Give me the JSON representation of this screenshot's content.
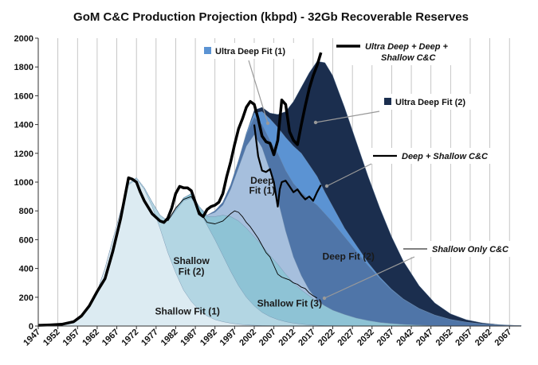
{
  "chart_data": {
    "type": "area",
    "title": "GoM C&C Production Projection (kbpd) - 32Gb Recoverable Reserves",
    "xlabel": "",
    "ylabel": "",
    "ylim": [
      0,
      2000
    ],
    "xlim": [
      1947,
      2070
    ],
    "yticks": [
      "0",
      "200",
      "400",
      "600",
      "800",
      "1000",
      "1200",
      "1400",
      "1600",
      "1800",
      "2000"
    ],
    "xticks": [
      "1947",
      "1952",
      "1957",
      "1962",
      "1967",
      "1972",
      "1977",
      "1982",
      "1987",
      "1992",
      "1997",
      "2002",
      "2007",
      "2012",
      "2017",
      "2022",
      "2027",
      "2032",
      "2037",
      "2042",
      "2047",
      "2052",
      "2057",
      "2062",
      "2067"
    ],
    "grid": "vertical",
    "x": [
      1947,
      1950,
      1953,
      1956,
      1958,
      1960,
      1962,
      1964,
      1966,
      1968,
      1970,
      1972,
      1974,
      1976,
      1978,
      1980,
      1982,
      1984,
      1986,
      1988,
      1990,
      1992,
      1994,
      1996,
      1998,
      2000,
      2002,
      2004,
      2006,
      2008,
      2010,
      2012,
      2014,
      2016,
      2018,
      2020,
      2022,
      2025,
      2028,
      2031,
      2034,
      2037,
      2040,
      2044,
      2048,
      2052,
      2056,
      2060,
      2064,
      2067,
      2070
    ],
    "series": [
      {
        "name": "Shallow Fit (1)",
        "color": "#dcebf2",
        "stacked_top": [
          0,
          5,
          10,
          20,
          60,
          130,
          240,
          400,
          600,
          800,
          980,
          1020,
          950,
          830,
          680,
          510,
          370,
          250,
          170,
          110,
          70,
          45,
          30,
          20,
          12,
          8,
          5,
          3,
          2,
          1,
          0,
          0,
          0,
          0,
          0,
          0,
          0,
          0,
          0,
          0,
          0,
          0,
          0,
          0,
          0,
          0,
          0,
          0,
          0,
          0,
          0
        ]
      },
      {
        "name": "Shallow Fit (2)",
        "color": "#b3d6e3",
        "stacked_top": [
          0,
          5,
          10,
          20,
          60,
          130,
          240,
          400,
          600,
          800,
          990,
          1030,
          960,
          860,
          770,
          730,
          800,
          870,
          890,
          800,
          700,
          600,
          490,
          380,
          280,
          200,
          140,
          95,
          65,
          45,
          30,
          20,
          13,
          8,
          5,
          3,
          2,
          1,
          0,
          0,
          0,
          0,
          0,
          0,
          0,
          0,
          0,
          0,
          0,
          0,
          0
        ]
      },
      {
        "name": "Shallow Fit (3)",
        "color": "#8ec3d5",
        "stacked_top": [
          0,
          5,
          10,
          20,
          60,
          130,
          240,
          400,
          600,
          800,
          990,
          1030,
          960,
          860,
          770,
          730,
          810,
          890,
          920,
          830,
          760,
          760,
          770,
          760,
          730,
          680,
          620,
          560,
          490,
          430,
          360,
          300,
          250,
          210,
          170,
          140,
          110,
          80,
          55,
          38,
          25,
          17,
          11,
          6,
          3,
          1,
          0,
          0,
          0,
          0,
          0
        ]
      },
      {
        "name": "Deep Fit (1)",
        "color": "#a6bfdd",
        "stacked_top": [
          0,
          5,
          10,
          20,
          60,
          130,
          240,
          400,
          600,
          800,
          990,
          1030,
          960,
          860,
          770,
          730,
          810,
          890,
          920,
          830,
          770,
          790,
          840,
          950,
          1100,
          1250,
          1330,
          1240,
          1080,
          880,
          660,
          480,
          350,
          250,
          180,
          140,
          110,
          80,
          55,
          38,
          25,
          17,
          11,
          6,
          3,
          1,
          0,
          0,
          0,
          0,
          0
        ]
      },
      {
        "name": "Deep Fit (2)",
        "color": "#4f75a8",
        "stacked_top": [
          0,
          5,
          10,
          20,
          60,
          130,
          240,
          400,
          600,
          800,
          990,
          1030,
          960,
          860,
          770,
          730,
          810,
          890,
          920,
          830,
          770,
          800,
          860,
          980,
          1150,
          1330,
          1450,
          1400,
          1290,
          1200,
          1080,
          990,
          930,
          880,
          840,
          780,
          720,
          620,
          520,
          420,
          330,
          250,
          185,
          120,
          75,
          45,
          27,
          15,
          8,
          5,
          3
        ]
      },
      {
        "name": "Ultra Deep Fit (1)",
        "color": "#5b93d3",
        "stacked_top": [
          0,
          5,
          10,
          20,
          60,
          130,
          240,
          400,
          600,
          800,
          990,
          1030,
          960,
          860,
          770,
          730,
          810,
          890,
          920,
          830,
          770,
          800,
          860,
          980,
          1150,
          1340,
          1480,
          1490,
          1440,
          1380,
          1310,
          1250,
          1200,
          1120,
          1040,
          930,
          830,
          680,
          560,
          440,
          340,
          255,
          188,
          122,
          76,
          46,
          27,
          15,
          8,
          5,
          3
        ]
      },
      {
        "name": "Ultra Deep Fit (2)",
        "color": "#1b2e4e",
        "stacked_top": [
          0,
          5,
          10,
          20,
          60,
          130,
          240,
          400,
          600,
          800,
          990,
          1030,
          960,
          860,
          770,
          730,
          810,
          890,
          920,
          830,
          770,
          800,
          860,
          980,
          1150,
          1340,
          1500,
          1520,
          1480,
          1470,
          1490,
          1560,
          1660,
          1760,
          1840,
          1830,
          1740,
          1520,
          1280,
          1040,
          820,
          620,
          450,
          280,
          160,
          85,
          44,
          22,
          11,
          6,
          3
        ]
      }
    ],
    "lines": [
      {
        "name": "Ultra Deep + Deep + Shallow C&C",
        "color": "#000000",
        "width": 3.5,
        "x": [
          1947,
          1950,
          1953,
          1956,
          1958,
          1960,
          1962,
          1964,
          1966,
          1968,
          1970,
          1971,
          1972,
          1973,
          1974,
          1976,
          1978,
          1979,
          1980,
          1981,
          1982,
          1983,
          1984,
          1985,
          1986,
          1987,
          1988,
          1989,
          1990,
          1991,
          1992,
          1993,
          1994,
          1995,
          1996,
          1997,
          1998,
          1999,
          2000,
          2001,
          2002,
          2003,
          2004,
          2005,
          2006,
          2007,
          2008,
          2009,
          2010,
          2011,
          2012,
          2013,
          2014,
          2015,
          2016,
          2017,
          2018,
          2019
        ],
        "y": [
          5,
          8,
          12,
          30,
          70,
          140,
          240,
          330,
          520,
          750,
          1030,
          1020,
          1000,
          930,
          870,
          780,
          730,
          720,
          750,
          820,
          920,
          970,
          960,
          960,
          940,
          860,
          780,
          760,
          810,
          830,
          840,
          860,
          920,
          1040,
          1140,
          1260,
          1370,
          1440,
          1520,
          1560,
          1540,
          1440,
          1320,
          1280,
          1270,
          1190,
          1290,
          1570,
          1540,
          1350,
          1290,
          1260,
          1400,
          1530,
          1650,
          1740,
          1810,
          1900
        ]
      },
      {
        "name": "Deep + Shallow C&C",
        "color": "#000000",
        "width": 2.2,
        "x": [
          2002,
          2003,
          2004,
          2005,
          2006,
          2007,
          2008,
          2008.5,
          2009,
          2010,
          2011,
          2012,
          2013,
          2014,
          2015,
          2016,
          2017,
          2018,
          2019
        ],
        "y": [
          1400,
          1180,
          1080,
          1070,
          1090,
          1000,
          830,
          950,
          1000,
          1010,
          970,
          930,
          950,
          910,
          880,
          900,
          870,
          930,
          980
        ]
      },
      {
        "name": "Shallow Only C&C",
        "color": "#000000",
        "width": 0.9,
        "x": [
          1980,
          1982,
          1984,
          1986,
          1988,
          1990,
          1992,
          1994,
          1996,
          1997,
          1998,
          1999,
          2000,
          2001,
          2002,
          2003,
          2004,
          2005,
          2006,
          2007,
          2008,
          2009,
          2010,
          2011,
          2012,
          2013,
          2014,
          2015,
          2016,
          2017,
          2018
        ],
        "y": [
          730,
          820,
          880,
          900,
          800,
          720,
          710,
          730,
          780,
          800,
          790,
          760,
          720,
          690,
          650,
          610,
          560,
          510,
          480,
          420,
          360,
          340,
          330,
          320,
          300,
          290,
          270,
          260,
          230,
          210,
          195
        ]
      }
    ],
    "area_labels": [
      {
        "text": "Shallow Fit (1)",
        "x": 1985,
        "y": 80
      },
      {
        "text": "Shallow",
        "x": 1986,
        "y": 430
      },
      {
        "text": "Fit (2)",
        "x": 1986,
        "y": 355
      },
      {
        "text": "Deep",
        "x": 2004,
        "y": 990
      },
      {
        "text": "Fit (1)",
        "x": 2004,
        "y": 920
      },
      {
        "text": "Shallow Fit (3)",
        "x": 2011,
        "y": 135
      },
      {
        "text": "Deep Fit (2)",
        "x": 2026,
        "y": 460
      }
    ],
    "legend": [
      {
        "text": "Ultra Deep Fit (1)",
        "kind": "swatch",
        "color": "#5b93d3"
      },
      {
        "text": "Ultra Deep + Deep + Shallow C&C",
        "line1": "Ultra Deep + Deep +",
        "line2": "Shallow C&C",
        "kind": "line-thick"
      },
      {
        "text": "Ultra Deep Fit (2)",
        "kind": "swatch",
        "color": "#1b2e4e"
      },
      {
        "text": "Deep + Shallow C&C",
        "kind": "line-medium"
      },
      {
        "text": "Shallow Only C&C",
        "kind": "line-thin"
      }
    ]
  }
}
